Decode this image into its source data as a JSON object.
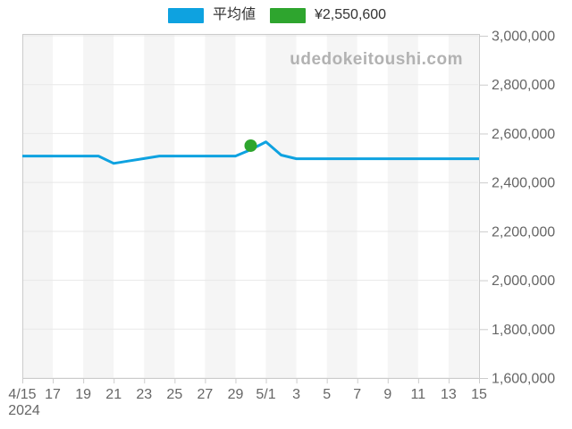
{
  "legend": {
    "series1": {
      "label": "平均値",
      "color": "#0ea2e0"
    },
    "series2": {
      "label": "¥2,550,600",
      "color": "#2ea52e"
    }
  },
  "watermark": "udedokeitoushi.com",
  "chart_data": {
    "type": "line",
    "title": "",
    "year_label": "2024",
    "xlim_days": [
      0,
      30
    ],
    "ylim": [
      1600000,
      3000000
    ],
    "grid": true,
    "legend_position": "top",
    "plot_band_colors": [
      "#f5f5f5",
      "#ffffff"
    ],
    "plot_band_interval_days": 2,
    "axis_line_color": "#cccccc",
    "gridline_color": "#e8e8e8",
    "x_tick_days": [
      0,
      2,
      4,
      6,
      8,
      10,
      12,
      14,
      16,
      18,
      20,
      22,
      24,
      26,
      28,
      30
    ],
    "x_tick_labels": [
      "4/15",
      "17",
      "19",
      "21",
      "23",
      "25",
      "27",
      "29",
      "5/1",
      "3",
      "5",
      "7",
      "9",
      "11",
      "13",
      "15"
    ],
    "y_tick_values": [
      1600000,
      1800000,
      2000000,
      2200000,
      2400000,
      2600000,
      2800000,
      3000000
    ],
    "y_tick_labels": [
      "1,600,000",
      "1,800,000",
      "2,000,000",
      "2,200,000",
      "2,400,000",
      "2,600,000",
      "2,800,000",
      "3,000,000"
    ],
    "dates": [
      "4/15",
      "4/16",
      "4/17",
      "4/18",
      "4/19",
      "4/20",
      "4/21",
      "4/22",
      "4/23",
      "4/24",
      "4/25",
      "4/26",
      "4/27",
      "4/28",
      "4/29",
      "4/30",
      "5/1",
      "5/2",
      "5/3",
      "5/4",
      "5/5",
      "5/6",
      "5/7",
      "5/8",
      "5/9",
      "5/10",
      "5/11",
      "5/12",
      "5/13",
      "5/14",
      "5/15"
    ],
    "series": [
      {
        "name": "平均値",
        "color": "#0ea2e0",
        "values": [
          2508000,
          2508000,
          2508000,
          2508000,
          2508000,
          2508000,
          2478000,
          2488000,
          2498000,
          2508000,
          2508000,
          2508000,
          2508000,
          2508000,
          2508000,
          2534000,
          2566000,
          2512000,
          2497000,
          2497000,
          2497000,
          2497000,
          2497000,
          2497000,
          2497000,
          2497000,
          2497000,
          2497000,
          2497000,
          2497000,
          2497000
        ]
      }
    ],
    "point_marker": {
      "label": "¥2,550,600",
      "value": 2550600,
      "day": 15,
      "date": "4/30",
      "color": "#2ea52e"
    }
  }
}
